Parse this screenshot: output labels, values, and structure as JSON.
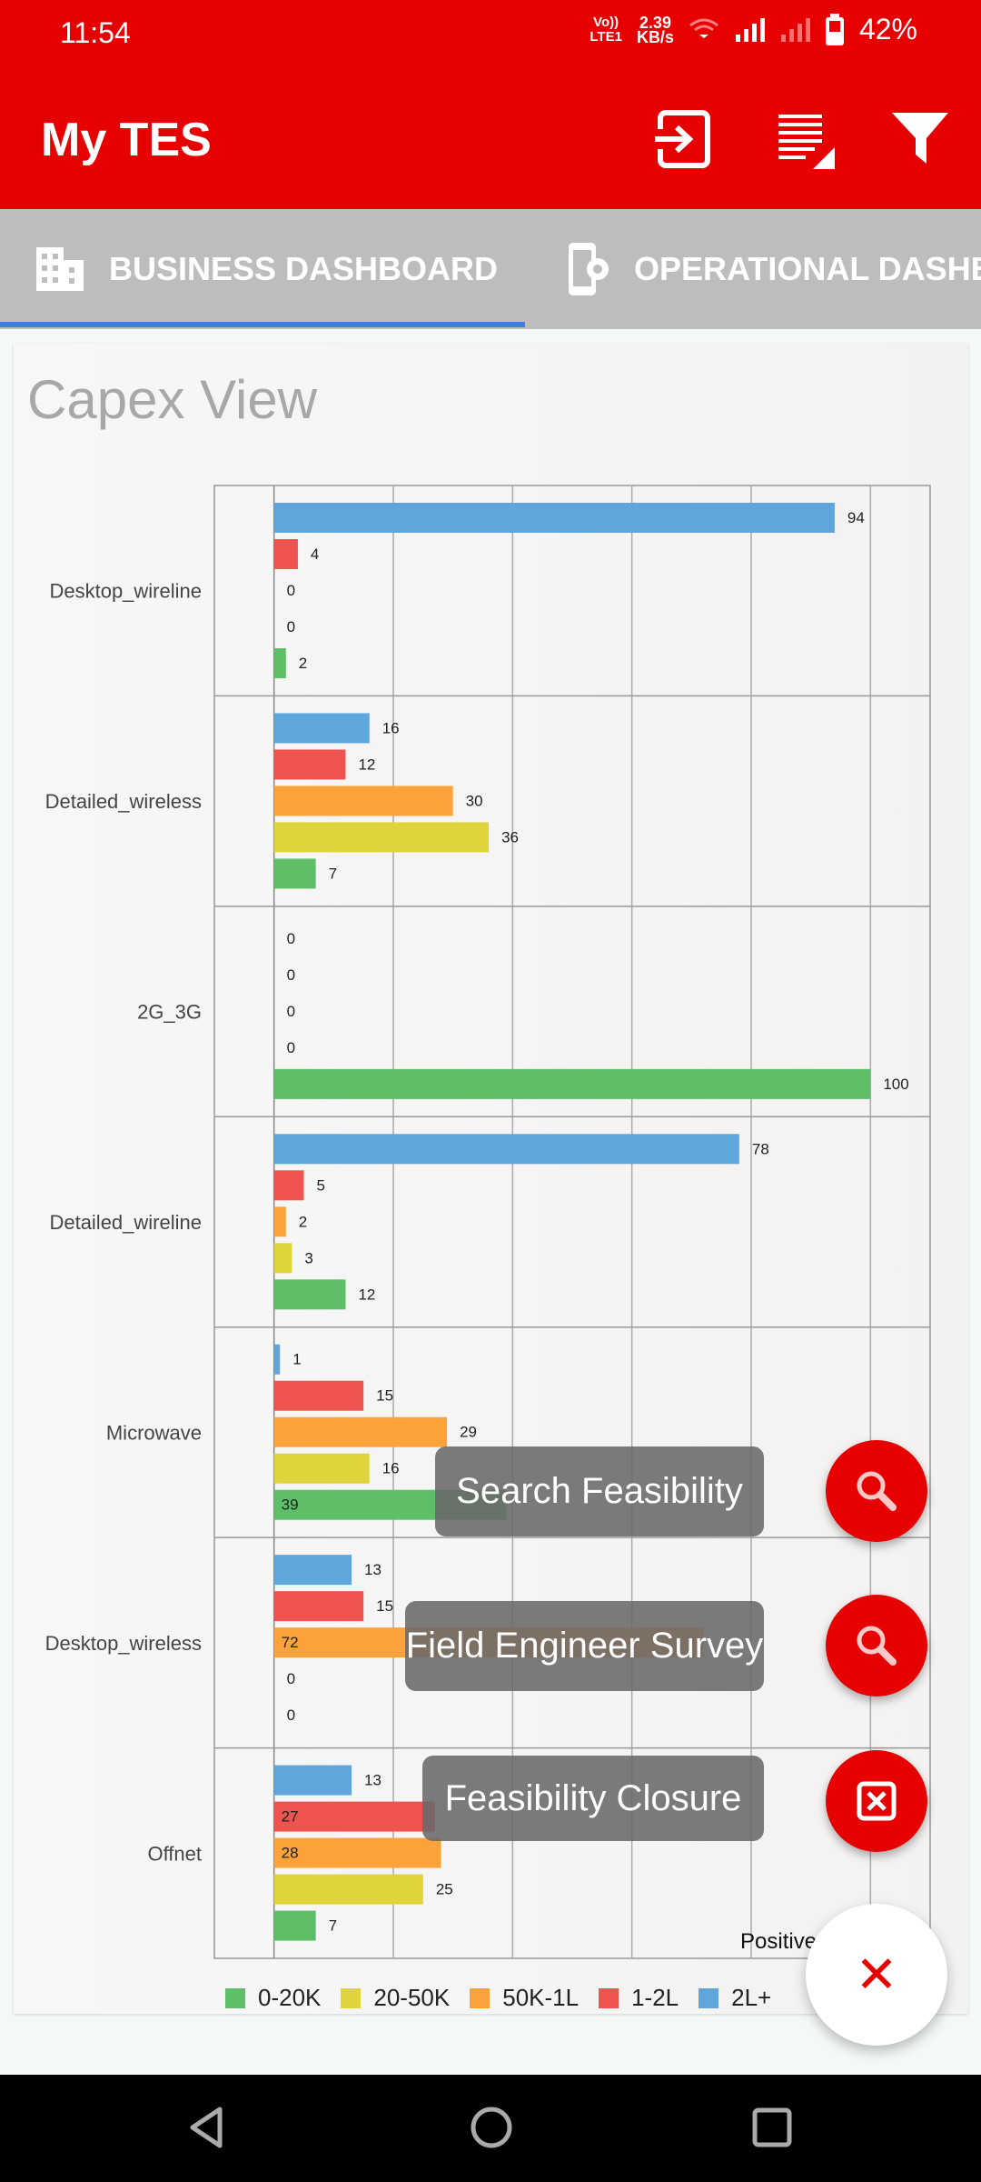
{
  "status_bar": {
    "time": "11:54",
    "network_label_top": "Vo))",
    "network_label_bottom": "LTE1",
    "speed_value": "2.39",
    "speed_unit": "KB/s",
    "battery": "42%"
  },
  "app_bar": {
    "title": "My TES",
    "icons": [
      "login-icon",
      "list-icon",
      "filter-icon"
    ]
  },
  "tabs": [
    {
      "label": "BUSINESS DASHBOARD",
      "icon": "building-icon",
      "selected": true
    },
    {
      "label": "OPERATIONAL DASHBOARD",
      "icon": "phone-settings-icon",
      "selected": false
    }
  ],
  "card": {
    "title": "Capex View",
    "footer_text": "Positive"
  },
  "chart_data": {
    "type": "bar",
    "orientation": "horizontal",
    "title": "Capex View",
    "categories": [
      "Desktop_wireline",
      "Detailed_wireless",
      "2G_3G",
      "Detailed_wireline",
      "Microwave",
      "Desktop_wireless",
      "Offnet"
    ],
    "series": [
      {
        "name": "2L+",
        "color": "#5fa6dc",
        "values": [
          94,
          16,
          0,
          78,
          1,
          13,
          13
        ]
      },
      {
        "name": "1-2L",
        "color": "#ef5350",
        "values": [
          4,
          12,
          0,
          5,
          15,
          15,
          27
        ]
      },
      {
        "name": "50K-1L",
        "color": "#fba33a",
        "values": [
          0,
          30,
          0,
          2,
          29,
          72,
          28
        ]
      },
      {
        "name": "20-50K",
        "color": "#dfd43c",
        "values": [
          0,
          36,
          0,
          3,
          16,
          0,
          25
        ]
      },
      {
        "name": "0-20K",
        "color": "#5fbf68",
        "values": [
          2,
          7,
          100,
          12,
          39,
          0,
          7
        ]
      }
    ],
    "legend_order": [
      "0-20K",
      "20-50K",
      "50K-1L",
      "1-2L",
      "2L+"
    ],
    "xlim": [
      -10,
      110
    ],
    "grid": true,
    "legend": "bottom"
  },
  "fab_menu": {
    "items": [
      {
        "label": "Search Feasibility",
        "icon": "search-icon"
      },
      {
        "label": "Field Engineer Survey",
        "icon": "search-icon"
      },
      {
        "label": "Feasibility Closure",
        "icon": "close-box-icon"
      }
    ],
    "main_icon": "close-icon",
    "main_symbol": "✕"
  },
  "colors": {
    "brand": "#e60000",
    "tab_bar": "#bdbdbd",
    "tab_indicator": "#3d7fe0"
  }
}
